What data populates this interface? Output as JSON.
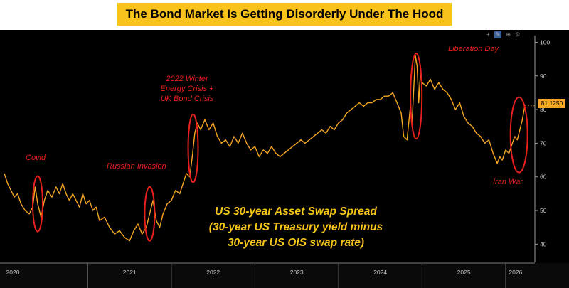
{
  "title": "The Bond Market Is Getting Disorderly Under The Hood",
  "toolbar": {
    "icons": [
      "add-icon",
      "pencil-icon",
      "zoom-icon",
      "settings-icon"
    ],
    "glyphs": [
      "+",
      "✎",
      "⊕",
      "⚙"
    ]
  },
  "annotations": {
    "covid": "Covid",
    "russian_invasion": "Russian Invasion",
    "energy_crisis": [
      "2022 Winter",
      "Energy Crisis  +",
      "UK Bond Crisis"
    ],
    "liberation_day": "Liberation Day",
    "iran_war": "Iran War"
  },
  "caption": [
    "US 30-year Asset Swap Spread",
    "(30-year US Treasury yield minus",
    "30-year US OIS swap rate)"
  ],
  "colors": {
    "line": "#f5a623",
    "annotation": "#e8201c",
    "caption": "#f5c518",
    "banner": "#f7c31c",
    "background": "#000000"
  },
  "chart_data": {
    "type": "line",
    "title": "The Bond Market Is Getting Disorderly Under The Hood",
    "xlabel": "",
    "ylabel": "",
    "ylim": [
      35,
      102
    ],
    "yticks": [
      40,
      50,
      60,
      70,
      80,
      90,
      100
    ],
    "xlim": [
      2020.0,
      2026.35
    ],
    "xtick_labels": [
      "2020",
      "2021",
      "2022",
      "2023",
      "2024",
      "2025",
      "2026"
    ],
    "last_value": "81.1250",
    "grid": false,
    "series": [
      {
        "points": [
          [
            2020.0,
            61
          ],
          [
            2020.04,
            58
          ],
          [
            2020.08,
            56
          ],
          [
            2020.12,
            54
          ],
          [
            2020.16,
            55
          ],
          [
            2020.2,
            52
          ],
          [
            2020.25,
            50
          ],
          [
            2020.3,
            49
          ],
          [
            2020.34,
            51
          ],
          [
            2020.37,
            57
          ],
          [
            2020.4,
            52
          ],
          [
            2020.44,
            48
          ],
          [
            2020.48,
            53
          ],
          [
            2020.52,
            56
          ],
          [
            2020.57,
            54
          ],
          [
            2020.62,
            57
          ],
          [
            2020.66,
            55
          ],
          [
            2020.7,
            58
          ],
          [
            2020.74,
            55
          ],
          [
            2020.78,
            53
          ],
          [
            2020.82,
            55
          ],
          [
            2020.86,
            53
          ],
          [
            2020.9,
            51
          ],
          [
            2020.94,
            55
          ],
          [
            2020.98,
            52
          ],
          [
            2021.02,
            53
          ],
          [
            2021.06,
            50
          ],
          [
            2021.1,
            51
          ],
          [
            2021.14,
            47
          ],
          [
            2021.2,
            48
          ],
          [
            2021.26,
            45
          ],
          [
            2021.32,
            43
          ],
          [
            2021.38,
            44
          ],
          [
            2021.44,
            42
          ],
          [
            2021.5,
            41
          ],
          [
            2021.55,
            44
          ],
          [
            2021.6,
            46
          ],
          [
            2021.65,
            43
          ],
          [
            2021.7,
            45
          ],
          [
            2021.74,
            49
          ],
          [
            2021.78,
            53
          ],
          [
            2021.82,
            47
          ],
          [
            2021.86,
            45
          ],
          [
            2021.9,
            49
          ],
          [
            2021.95,
            52
          ],
          [
            2022.0,
            53
          ],
          [
            2022.05,
            56
          ],
          [
            2022.1,
            55
          ],
          [
            2022.14,
            58
          ],
          [
            2022.18,
            61
          ],
          [
            2022.22,
            60
          ],
          [
            2022.25,
            66
          ],
          [
            2022.28,
            73
          ],
          [
            2022.31,
            76
          ],
          [
            2022.35,
            74
          ],
          [
            2022.4,
            77
          ],
          [
            2022.45,
            74
          ],
          [
            2022.5,
            76
          ],
          [
            2022.55,
            72
          ],
          [
            2022.6,
            70
          ],
          [
            2022.65,
            71
          ],
          [
            2022.7,
            69
          ],
          [
            2022.75,
            72
          ],
          [
            2022.8,
            70
          ],
          [
            2022.85,
            73
          ],
          [
            2022.9,
            70
          ],
          [
            2022.95,
            68
          ],
          [
            2023.0,
            69
          ],
          [
            2023.05,
            66
          ],
          [
            2023.1,
            68
          ],
          [
            2023.15,
            67
          ],
          [
            2023.2,
            69
          ],
          [
            2023.25,
            67
          ],
          [
            2023.3,
            66
          ],
          [
            2023.35,
            67
          ],
          [
            2023.4,
            68
          ],
          [
            2023.45,
            69
          ],
          [
            2023.5,
            70
          ],
          [
            2023.55,
            71
          ],
          [
            2023.6,
            70
          ],
          [
            2023.65,
            71
          ],
          [
            2023.7,
            72
          ],
          [
            2023.75,
            73
          ],
          [
            2023.8,
            74
          ],
          [
            2023.85,
            73
          ],
          [
            2023.9,
            75
          ],
          [
            2023.95,
            74
          ],
          [
            2024.0,
            76
          ],
          [
            2024.05,
            77
          ],
          [
            2024.1,
            79
          ],
          [
            2024.15,
            80
          ],
          [
            2024.2,
            81
          ],
          [
            2024.25,
            82
          ],
          [
            2024.3,
            81
          ],
          [
            2024.35,
            82
          ],
          [
            2024.4,
            82
          ],
          [
            2024.45,
            83
          ],
          [
            2024.5,
            83
          ],
          [
            2024.55,
            84
          ],
          [
            2024.6,
            84
          ],
          [
            2024.65,
            85
          ],
          [
            2024.7,
            82
          ],
          [
            2024.75,
            79
          ],
          [
            2024.78,
            72
          ],
          [
            2024.82,
            71
          ],
          [
            2024.86,
            81
          ],
          [
            2024.88,
            76
          ],
          [
            2024.9,
            86
          ],
          [
            2024.92,
            96
          ],
          [
            2024.94,
            93
          ],
          [
            2024.96,
            82
          ],
          [
            2024.98,
            91
          ],
          [
            2025.0,
            88
          ],
          [
            2025.05,
            87
          ],
          [
            2025.1,
            89
          ],
          [
            2025.15,
            86
          ],
          [
            2025.2,
            88
          ],
          [
            2025.25,
            86
          ],
          [
            2025.3,
            85
          ],
          [
            2025.35,
            83
          ],
          [
            2025.4,
            80
          ],
          [
            2025.45,
            82
          ],
          [
            2025.5,
            78
          ],
          [
            2025.55,
            76
          ],
          [
            2025.6,
            75
          ],
          [
            2025.65,
            73
          ],
          [
            2025.7,
            72
          ],
          [
            2025.75,
            70
          ],
          [
            2025.8,
            71
          ],
          [
            2025.85,
            67
          ],
          [
            2025.9,
            64
          ],
          [
            2025.93,
            66
          ],
          [
            2025.96,
            65
          ],
          [
            2026.0,
            68
          ],
          [
            2026.04,
            67
          ],
          [
            2026.08,
            70
          ],
          [
            2026.11,
            72
          ],
          [
            2026.14,
            71
          ],
          [
            2026.17,
            74
          ],
          [
            2026.2,
            77
          ],
          [
            2026.23,
            81.125
          ]
        ]
      }
    ]
  }
}
